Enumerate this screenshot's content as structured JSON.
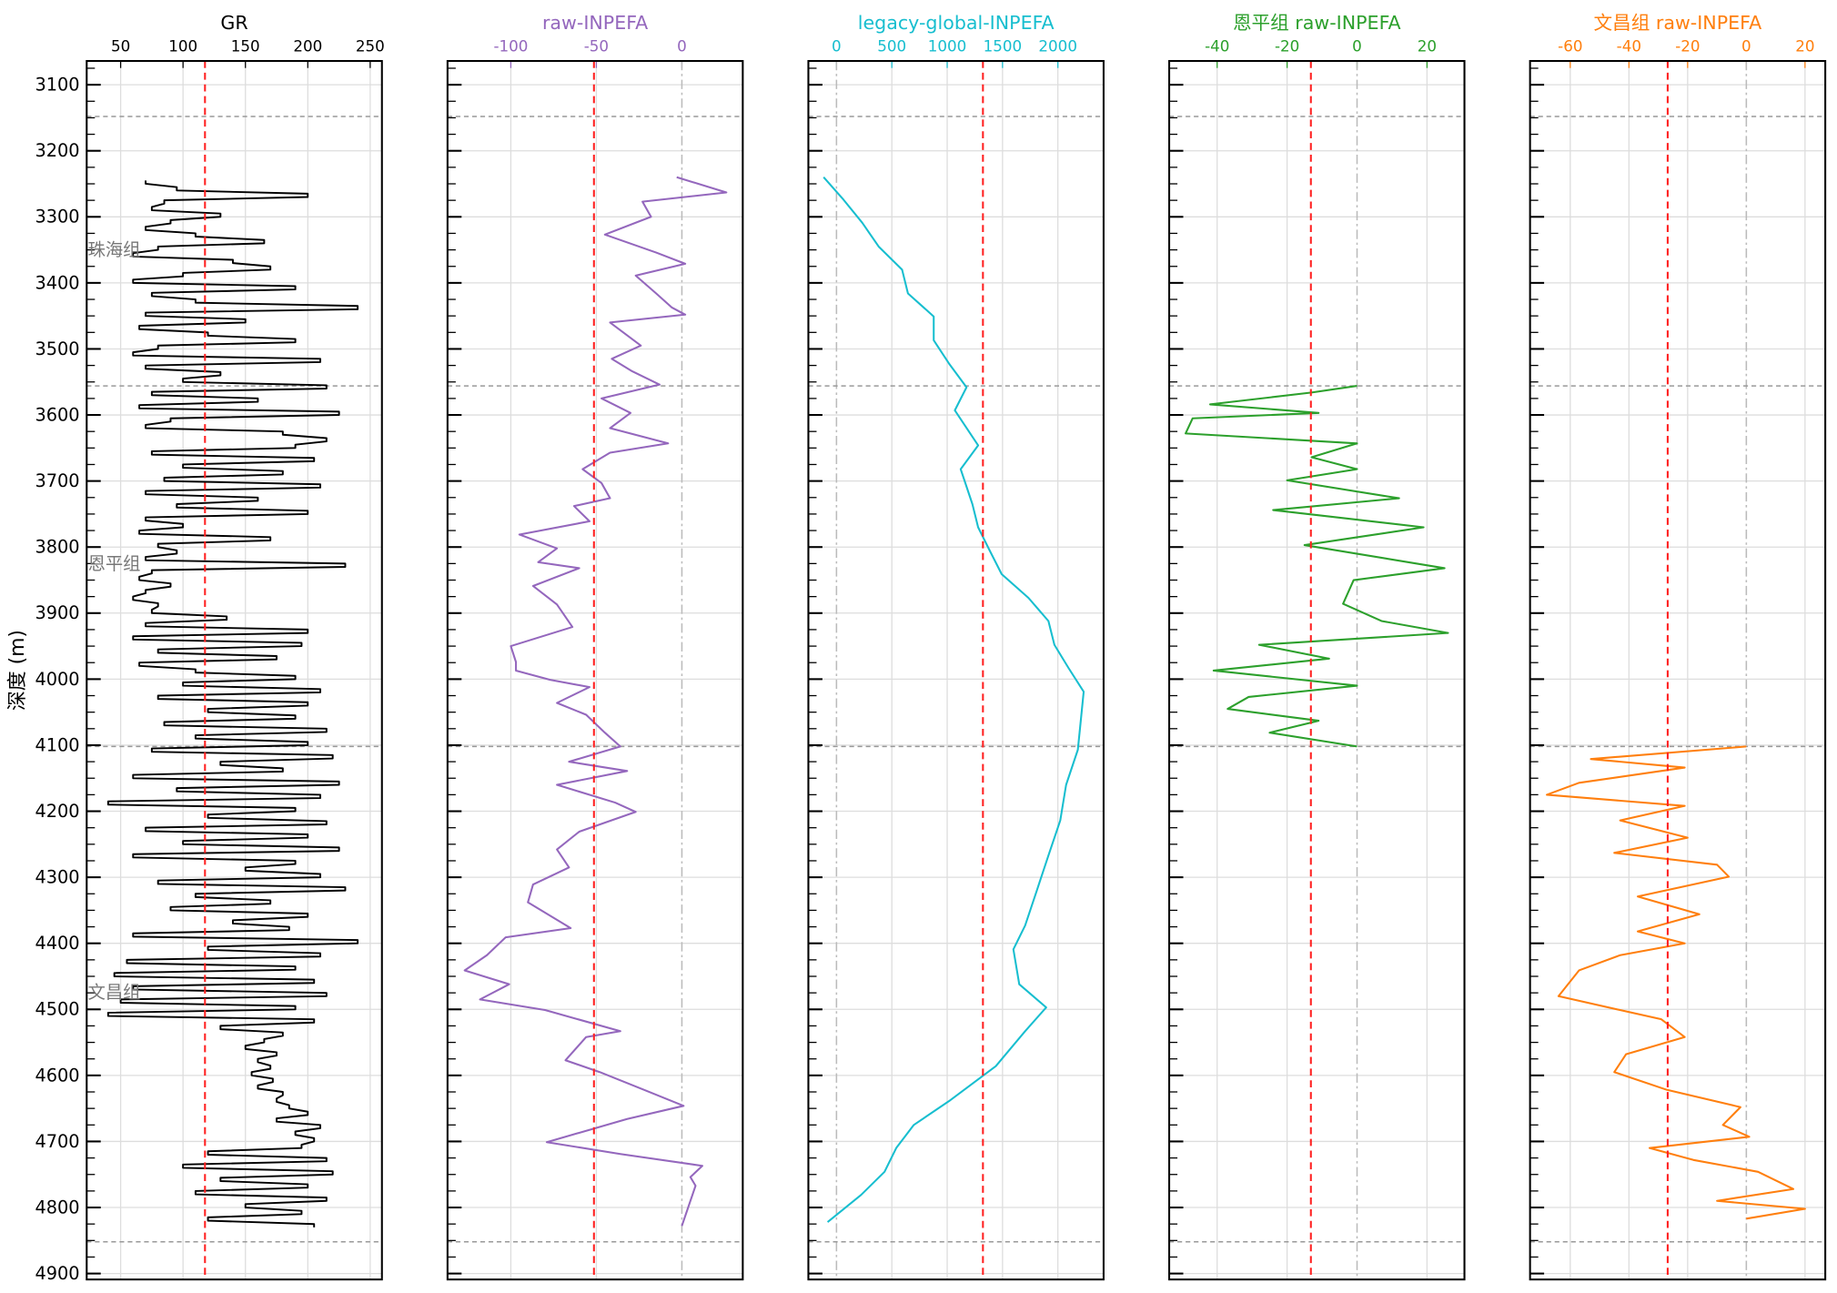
{
  "figure": {
    "ylabel": "深度 (m)",
    "ylim": [
      4909,
      3064
    ],
    "yticks": [
      3100,
      3200,
      3300,
      3400,
      3500,
      3600,
      3700,
      3800,
      3900,
      4000,
      4100,
      4200,
      4300,
      4400,
      4500,
      4600,
      4700,
      4800,
      4900
    ],
    "boundaries": [
      3148,
      3556,
      4102,
      4852
    ],
    "formations": [
      {
        "label": "珠海组",
        "depth": 3350
      },
      {
        "label": "恩平组",
        "depth": 3825
      },
      {
        "label": "文昌组",
        "depth": 4474
      }
    ],
    "colors": {
      "ref_line": "#ff2020",
      "boundary": "#999999",
      "grid": "#dddddd"
    }
  },
  "chart_data": [
    {
      "type": "line",
      "title": "GR",
      "color": "#000000",
      "xlim": [
        22.8,
        259.4
      ],
      "xticks": [
        50,
        100,
        150,
        200,
        250
      ],
      "ref_line": 117.6,
      "zero_line": false,
      "series": {
        "depth_start": 3245,
        "depth_step": 10,
        "values": [
          70,
          95,
          200,
          85,
          75,
          130,
          90,
          70,
          110,
          165,
          80,
          60,
          140,
          170,
          100,
          60,
          190,
          75,
          110,
          240,
          70,
          150,
          65,
          120,
          190,
          80,
          60,
          210,
          70,
          130,
          100,
          215,
          75,
          160,
          65,
          225,
          90,
          70,
          180,
          215,
          190,
          75,
          205,
          100,
          180,
          85,
          210,
          70,
          160,
          95,
          200,
          70,
          100,
          65,
          170,
          80,
          95,
          70,
          230,
          75,
          65,
          90,
          70,
          60,
          80,
          75,
          135,
          70,
          200,
          60,
          195,
          80,
          175,
          65,
          110,
          190,
          100,
          210,
          80,
          200,
          120,
          190,
          85,
          215,
          110,
          200,
          75,
          220,
          130,
          180,
          60,
          225,
          95,
          210,
          40,
          190,
          120,
          215,
          70,
          200,
          100,
          225,
          60,
          190,
          150,
          210,
          80,
          230,
          110,
          170,
          90,
          200,
          140,
          185,
          60,
          240,
          120,
          210,
          55,
          190,
          45,
          205,
          60,
          215,
          50,
          190,
          40,
          205,
          130,
          180,
          165,
          150,
          175,
          160,
          170,
          155,
          172,
          160,
          180,
          175,
          185,
          200,
          175,
          210,
          190,
          205,
          195,
          120,
          215,
          100,
          220,
          130,
          200,
          110,
          215,
          150,
          195,
          120,
          205
        ]
      }
    },
    {
      "type": "line",
      "title": "raw-INPEFA",
      "color": "#9467bd",
      "xlim": [
        -137,
        35.6
      ],
      "xticks": [
        -100,
        -50,
        0
      ],
      "ref_line": -51.4,
      "zero_line": true,
      "series": {
        "depth": [
          3240,
          3263,
          3277,
          3300,
          3327,
          3354,
          3371,
          3389,
          3416,
          3437,
          3448,
          3460,
          3495,
          3515,
          3534,
          3554,
          3575,
          3597,
          3620,
          3643,
          3657,
          3682,
          3703,
          3726,
          3738,
          3761,
          3781,
          3802,
          3823,
          3832,
          3859,
          3887,
          3921,
          3950,
          3974,
          3987,
          4001,
          4012,
          4036,
          4054,
          4081,
          4102,
          4125,
          4139,
          4160,
          4187,
          4201,
          4231,
          4258,
          4285,
          4311,
          4338,
          4377,
          4391,
          4418,
          4441,
          4462,
          4485,
          4501,
          4533,
          4542,
          4577,
          4595,
          4622,
          4646,
          4666,
          4701,
          4719,
          4737,
          4754,
          4767,
          4828
        ],
        "values": [
          -3,
          26,
          -23,
          -18,
          -45,
          -15,
          2,
          -27,
          -15,
          -6,
          2,
          -42,
          -24,
          -41,
          -29,
          -13,
          -47,
          -30,
          -42,
          -8,
          -42,
          -58,
          -47,
          -42,
          -63,
          -54,
          -95,
          -73,
          -84,
          -60,
          -87,
          -73,
          -64,
          -100,
          -97,
          -97,
          -77,
          -54,
          -73,
          -56,
          -45,
          -36,
          -66,
          -32,
          -73,
          -39,
          -27,
          -60,
          -73,
          -66,
          -87,
          -90,
          -65,
          -103,
          -114,
          -127,
          -101,
          -118,
          -80,
          -36,
          -56,
          -68,
          -48,
          -22,
          1,
          -32,
          -79,
          -36,
          12,
          5,
          8,
          0
        ]
      }
    },
    {
      "type": "line",
      "title": "legacy-global-INPEFA",
      "color": "#17becf",
      "xlim": [
        -254,
        2413
      ],
      "xticks": [
        0,
        500,
        1000,
        1500,
        2000
      ],
      "ref_line": 1323,
      "zero_line": true,
      "series": {
        "depth": [
          3240,
          3274,
          3309,
          3345,
          3380,
          3416,
          3451,
          3487,
          3522,
          3558,
          3593,
          3646,
          3682,
          3735,
          3770,
          3806,
          3841,
          3877,
          3912,
          3948,
          3983,
          4019,
          4072,
          4107,
          4160,
          4214,
          4267,
          4320,
          4373,
          4409,
          4462,
          4497,
          4533,
          4586,
          4639,
          4675,
          4710,
          4746,
          4781,
          4817,
          4822
        ],
        "values": [
          -116,
          63,
          233,
          381,
          593,
          646,
          878,
          878,
          1016,
          1175,
          1069,
          1280,
          1122,
          1228,
          1280,
          1386,
          1492,
          1735,
          1915,
          1968,
          2095,
          2233,
          2201,
          2180,
          2074,
          2021,
          1915,
          1810,
          1704,
          1598,
          1651,
          1894,
          1704,
          1439,
          1016,
          698,
          540,
          434,
          222,
          -42,
          -80
        ]
      }
    },
    {
      "type": "line",
      "title": "恩平组 raw-INPEFA",
      "color": "#2ca02c",
      "xlim": [
        -53.7,
        30.7
      ],
      "xticks": [
        -40,
        -20,
        0,
        20
      ],
      "ref_line": -13.2,
      "zero_line": true,
      "series": {
        "depth": [
          3556,
          3566,
          3584,
          3597,
          3605,
          3628,
          3643,
          3664,
          3682,
          3699,
          3726,
          3744,
          3770,
          3797,
          3832,
          3850,
          3886,
          3912,
          3930,
          3948,
          3969,
          3987,
          4010,
          4027,
          4045,
          4063,
          4081,
          4102
        ],
        "values": [
          0,
          -13,
          -42,
          -11,
          -47,
          -49,
          0,
          -13,
          0,
          -20,
          12,
          -24,
          19,
          -15,
          25,
          -1,
          -4,
          7,
          26,
          -28,
          -8,
          -41,
          0,
          -31,
          -37,
          -11,
          -25,
          0
        ]
      }
    },
    {
      "type": "line",
      "title": "文昌组 raw-INPEFA",
      "color": "#ff7f0e",
      "xlim": [
        -73.7,
        26.9
      ],
      "xticks": [
        -60,
        -40,
        -20,
        0,
        20
      ],
      "ref_line": -26.8,
      "zero_line": true,
      "series": {
        "depth": [
          4102,
          4121,
          4134,
          4157,
          4175,
          4192,
          4214,
          4240,
          4263,
          4281,
          4299,
          4329,
          4356,
          4382,
          4400,
          4418,
          4441,
          4480,
          4515,
          4542,
          4568,
          4595,
          4622,
          4648,
          4675,
          4693,
          4710,
          4728,
          4746,
          4772,
          4790,
          4802,
          4817
        ],
        "values": [
          0,
          -53,
          -21,
          -57,
          -68,
          -21,
          -43,
          -20,
          -45,
          -10,
          -6,
          -37,
          -16,
          -37,
          -21,
          -43,
          -57,
          -64,
          -29,
          -21,
          -41,
          -45,
          -27,
          -2,
          -8,
          1,
          -33,
          -18,
          4,
          16,
          -10,
          20,
          0
        ]
      }
    }
  ]
}
